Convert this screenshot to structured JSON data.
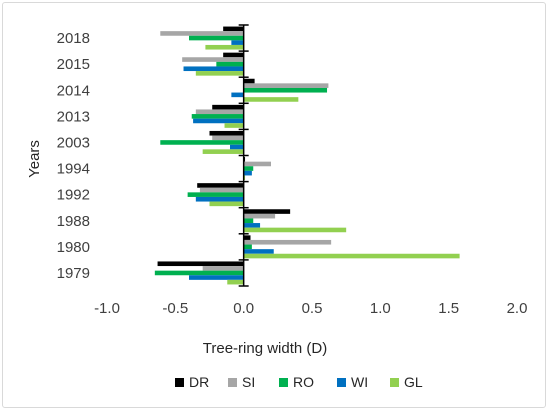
{
  "chart_data": {
    "type": "bar",
    "orientation": "horizontal",
    "categories": [
      "2018",
      "2015",
      "2014",
      "2013",
      "2003",
      "1994",
      "1992",
      "1988",
      "1980",
      "1979"
    ],
    "series": [
      {
        "name": "DR",
        "color": "#000000",
        "values": [
          -0.15,
          -0.15,
          0.08,
          -0.23,
          -0.25,
          0.01,
          -0.34,
          0.34,
          0.05,
          -0.63
        ]
      },
      {
        "name": "SI",
        "color": "#a6a6a6",
        "values": [
          -0.61,
          -0.45,
          0.62,
          -0.35,
          -0.23,
          0.2,
          -0.32,
          0.23,
          0.64,
          -0.3
        ]
      },
      {
        "name": "RO",
        "color": "#00b050",
        "values": [
          -0.4,
          -0.2,
          0.61,
          -0.38,
          -0.61,
          0.07,
          -0.41,
          0.07,
          0.06,
          -0.65
        ]
      },
      {
        "name": "WI",
        "color": "#0070c0",
        "values": [
          -0.09,
          -0.44,
          -0.09,
          -0.37,
          -0.1,
          0.06,
          -0.35,
          0.12,
          0.22,
          -0.4
        ]
      },
      {
        "name": "GL",
        "color": "#92d050",
        "values": [
          -0.28,
          -0.35,
          0.4,
          -0.14,
          -0.3,
          0.01,
          -0.25,
          0.75,
          1.58,
          -0.12
        ]
      }
    ],
    "xlabel": "Tree-ring width (D)",
    "ylabel": "Years",
    "xlim": [
      -1.0,
      2.0
    ],
    "xticks": [
      "-1.0",
      "-0.5",
      "0.0",
      "0.5",
      "1.0",
      "1.5",
      "2.0"
    ],
    "grid": false,
    "legend": "bottom"
  }
}
